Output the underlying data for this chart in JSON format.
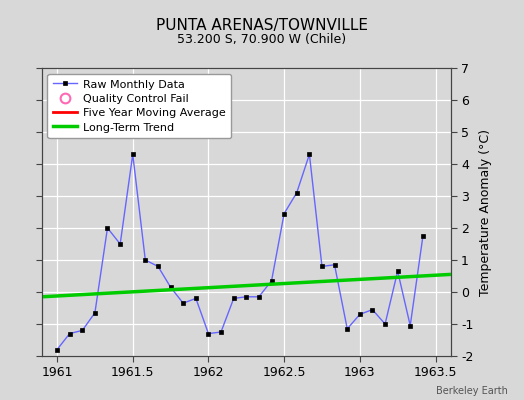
{
  "title": "PUNTA ARENAS/TOWNVILLE",
  "subtitle": "53.200 S, 70.900 W (Chile)",
  "ylabel": "Temperature Anomaly (°C)",
  "watermark": "Berkeley Earth",
  "xlim": [
    1960.9,
    1963.6
  ],
  "ylim": [
    -2,
    7
  ],
  "yticks": [
    -2,
    -1,
    0,
    1,
    2,
    3,
    4,
    5,
    6,
    7
  ],
  "xticks": [
    1961,
    1961.5,
    1962,
    1962.5,
    1963,
    1963.5
  ],
  "bg_color": "#d8d8d8",
  "plot_bg_color": "#d8d8d8",
  "raw_data_x": [
    1961.0,
    1961.083,
    1961.167,
    1961.25,
    1961.333,
    1961.417,
    1961.5,
    1961.583,
    1961.667,
    1961.75,
    1961.833,
    1961.917,
    1962.0,
    1962.083,
    1962.167,
    1962.25,
    1962.333,
    1962.417,
    1962.5,
    1962.583,
    1962.667,
    1962.75,
    1962.833,
    1962.917,
    1963.0,
    1963.083,
    1963.167,
    1963.25,
    1963.333,
    1963.417
  ],
  "raw_data_y": [
    -1.8,
    -1.3,
    -1.2,
    -0.65,
    2.0,
    1.5,
    4.3,
    1.0,
    0.8,
    0.15,
    -0.35,
    -0.2,
    -1.3,
    -1.25,
    -0.2,
    -0.15,
    -0.15,
    0.35,
    2.45,
    3.1,
    4.3,
    0.8,
    0.85,
    -1.15,
    -0.7,
    -0.55,
    -1.0,
    0.65,
    -1.05,
    1.75
  ],
  "trend_x": [
    1960.9,
    1963.6
  ],
  "trend_y": [
    -0.15,
    0.55
  ],
  "raw_color": "#6666ff",
  "raw_marker_color": "#000000",
  "five_year_color": "#ff0000",
  "trend_color": "#00cc00",
  "legend_labels": [
    "Raw Monthly Data",
    "Quality Control Fail",
    "Five Year Moving Average",
    "Long-Term Trend"
  ]
}
